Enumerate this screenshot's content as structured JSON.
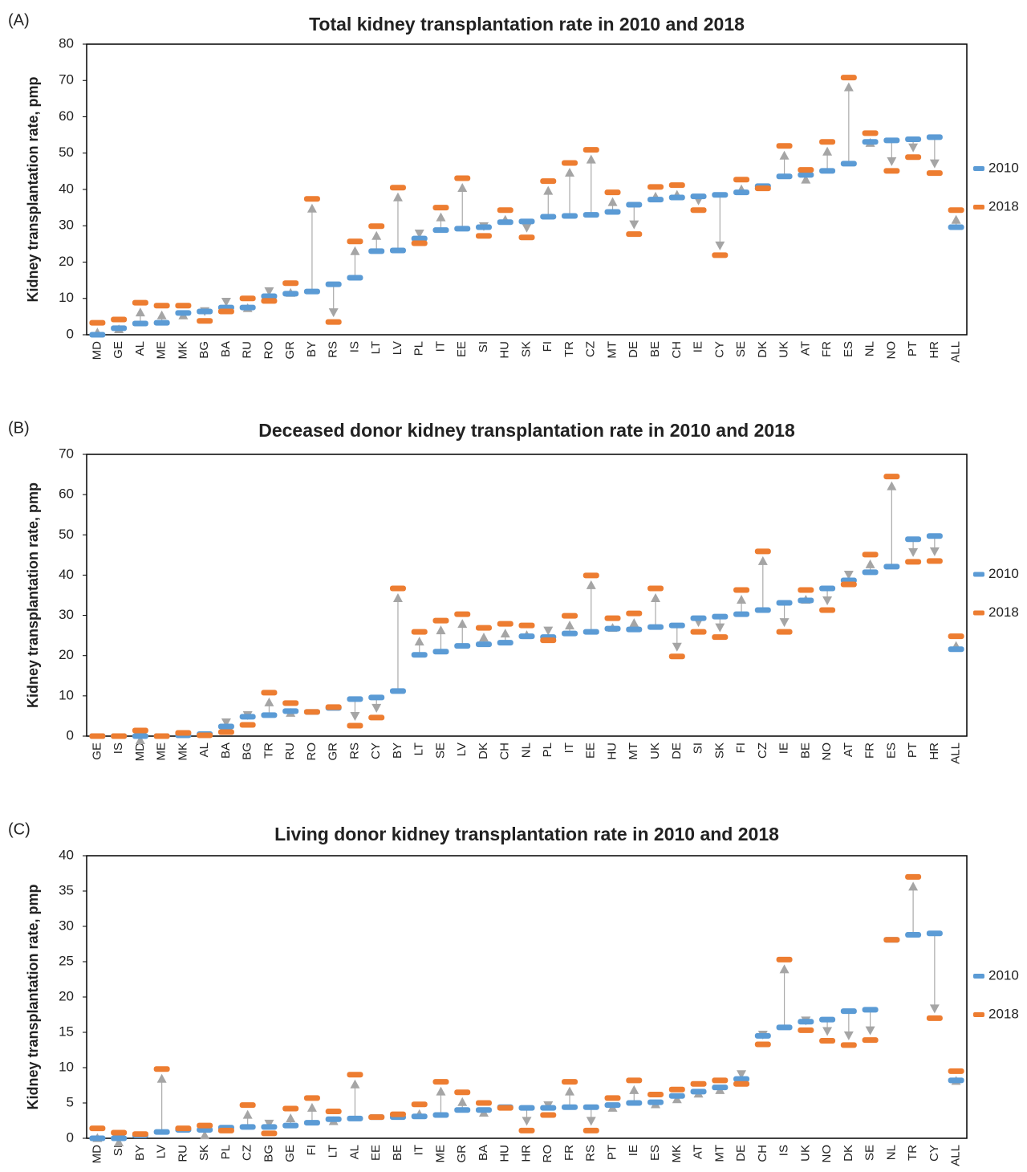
{
  "chart_data": [
    {
      "type": "dumbbell",
      "panel_label": "(A)",
      "title": "Total kidney transplantation rate in 2010 and 2018",
      "y_label": "Kidney transplantation rate, pmp",
      "categories": [
        "MD",
        "GE",
        "AL",
        "ME",
        "MK",
        "BG",
        "BA",
        "RU",
        "RO",
        "GR",
        "BY",
        "RS",
        "IS",
        "LT",
        "LV",
        "PL",
        "IT",
        "EE",
        "SI",
        "HU",
        "SK",
        "FI",
        "TR",
        "CZ",
        "MT",
        "DE",
        "BE",
        "CH",
        "IE",
        "CY",
        "SE",
        "DK",
        "UK",
        "AT",
        "FR",
        "ES",
        "NL",
        "NO",
        "PT",
        "HR",
        "ALL"
      ],
      "series": [
        {
          "name": "2010",
          "color": "#5b9bd5",
          "values": [
            0,
            1.8,
            3.1,
            3.3,
            6.0,
            6.4,
            7.5,
            7.5,
            10.6,
            11.3,
            11.9,
            13.9,
            15.7,
            23.0,
            23.2,
            26.5,
            28.8,
            29.2,
            29.6,
            31.0,
            31.2,
            32.5,
            32.7,
            33.0,
            33.8,
            35.8,
            37.2,
            37.8,
            38.1,
            38.5,
            39.2,
            40.9,
            43.6,
            44.0,
            45.1,
            47.1,
            53.1,
            53.5,
            53.8,
            54.4,
            29.6
          ]
        },
        {
          "name": "2018",
          "color": "#ed7d31",
          "values": [
            3.3,
            4.2,
            8.8,
            8.0,
            8.0,
            3.8,
            6.4,
            10.0,
            9.3,
            14.2,
            37.4,
            3.5,
            25.7,
            29.9,
            40.5,
            25.2,
            35.0,
            43.1,
            27.2,
            34.3,
            26.8,
            42.3,
            47.3,
            50.9,
            39.2,
            27.7,
            40.7,
            41.2,
            34.3,
            21.9,
            42.7,
            40.3,
            52.0,
            45.4,
            53.1,
            70.8,
            55.5,
            45.1,
            48.9,
            44.5,
            34.3
          ]
        }
      ],
      "ylim": [
        0,
        80
      ],
      "yticks": [
        0,
        10,
        20,
        30,
        40,
        50,
        60,
        70,
        80
      ],
      "legend": "right"
    },
    {
      "type": "dumbbell",
      "panel_label": "(B)",
      "title": "Deceased donor kidney transplantation rate in 2010 and 2018",
      "y_label": "Kidney transplantation rate, pmp",
      "categories": [
        "GE",
        "IS",
        "MD",
        "ME",
        "MK",
        "AL",
        "BA",
        "BG",
        "TR",
        "RU",
        "RO",
        "GR",
        "RS",
        "CY",
        "BY",
        "LT",
        "SE",
        "LV",
        "DK",
        "CH",
        "NL",
        "PL",
        "IT",
        "EE",
        "HU",
        "MT",
        "UK",
        "DE",
        "SI",
        "SK",
        "FI",
        "CZ",
        "IE",
        "BE",
        "NO",
        "AT",
        "FR",
        "ES",
        "PT",
        "HR",
        "ALL"
      ],
      "series": [
        {
          "name": "2010",
          "color": "#5b9bd5",
          "values": [
            0,
            0,
            0,
            0,
            0.2,
            0.5,
            2.4,
            4.8,
            5.2,
            6.2,
            6.0,
            7.0,
            9.2,
            9.6,
            11.2,
            20.2,
            21.0,
            22.4,
            22.8,
            23.2,
            24.8,
            24.6,
            25.5,
            25.9,
            26.7,
            26.5,
            27.1,
            27.5,
            29.3,
            29.7,
            30.3,
            31.3,
            33.1,
            33.7,
            36.7,
            38.7,
            40.7,
            42.1,
            48.9,
            49.7,
            21.6
          ]
        },
        {
          "name": "2018",
          "color": "#ed7d31",
          "values": [
            0,
            0,
            1.4,
            0,
            0.8,
            0.2,
            1.0,
            2.8,
            10.8,
            8.2,
            6.0,
            7.2,
            2.6,
            4.6,
            36.7,
            25.9,
            28.7,
            30.3,
            26.9,
            27.9,
            27.5,
            23.8,
            29.9,
            39.9,
            29.3,
            30.5,
            36.7,
            19.8,
            25.9,
            24.6,
            36.3,
            45.9,
            25.9,
            36.3,
            31.3,
            37.7,
            45.1,
            64.5,
            43.3,
            43.5,
            24.8
          ]
        }
      ],
      "ylim": [
        0,
        70
      ],
      "yticks": [
        0,
        10,
        20,
        30,
        40,
        50,
        60,
        70
      ],
      "legend": "right"
    },
    {
      "type": "dumbbell",
      "panel_label": "(C)",
      "title": "Living donor kidney transplantation rate in 2010 and 2018",
      "y_label": "Kidney transplantation rate, pmp",
      "categories": [
        "MD",
        "SI",
        "BY",
        "LV",
        "RU",
        "SK",
        "PL",
        "CZ",
        "BG",
        "GE",
        "FI",
        "LT",
        "AL",
        "EE",
        "BE",
        "IT",
        "ME",
        "GR",
        "BA",
        "HU",
        "HR",
        "RO",
        "FR",
        "RS",
        "PT",
        "IE",
        "ES",
        "MK",
        "AT",
        "MT",
        "DE",
        "CH",
        "IS",
        "UK",
        "NO",
        "DK",
        "SE",
        "NL",
        "TR",
        "CY",
        "ALL"
      ],
      "series": [
        {
          "name": "2010",
          "color": "#5b9bd5",
          "values": [
            0,
            0,
            0.4,
            0.9,
            1.2,
            1.2,
            1.5,
            1.6,
            1.6,
            1.8,
            2.2,
            2.7,
            2.8,
            3.0,
            3.0,
            3.1,
            3.3,
            4.0,
            4.0,
            4.4,
            4.3,
            4.3,
            4.4,
            4.4,
            4.7,
            5.0,
            5.1,
            6.0,
            6.6,
            7.2,
            8.4,
            14.5,
            15.7,
            16.5,
            16.8,
            18.0,
            18.2,
            28.1,
            28.8,
            29.0,
            8.2
          ]
        },
        {
          "name": "2018",
          "color": "#ed7d31",
          "values": [
            1.4,
            0.8,
            0.6,
            9.8,
            1.4,
            1.8,
            1.1,
            4.7,
            0.7,
            4.2,
            5.7,
            3.8,
            9.0,
            3.0,
            3.4,
            4.8,
            8.0,
            6.5,
            5.0,
            4.3,
            1.1,
            3.3,
            8.0,
            1.1,
            5.7,
            8.2,
            6.2,
            6.9,
            7.7,
            8.2,
            7.7,
            13.3,
            25.3,
            15.3,
            13.8,
            13.2,
            13.9,
            28.1,
            37.0,
            17.0,
            9.5
          ]
        }
      ],
      "ylim": [
        0,
        40
      ],
      "yticks": [
        0,
        5,
        10,
        15,
        20,
        25,
        30,
        35,
        40
      ],
      "legend": "right"
    }
  ]
}
